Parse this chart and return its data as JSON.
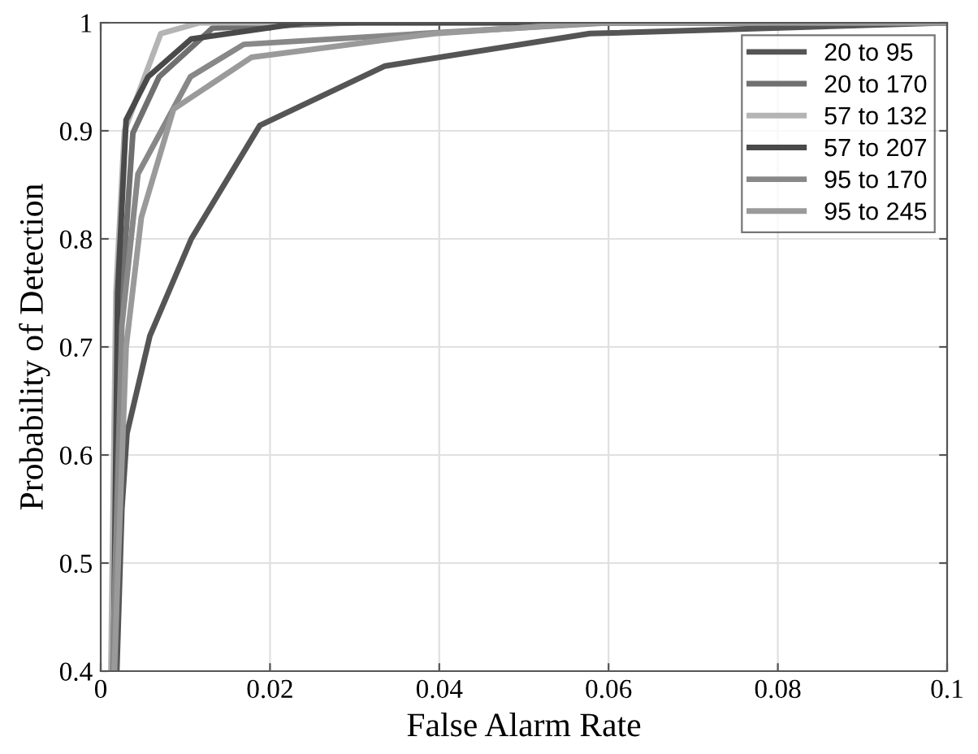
{
  "chart_data": {
    "type": "line",
    "xlabel": "False Alarm Rate",
    "ylabel": "Probability of Detection",
    "xlim": [
      0,
      0.1
    ],
    "ylim": [
      0.4,
      1
    ],
    "xticks": [
      0,
      0.02,
      0.04,
      0.06,
      0.08,
      0.1
    ],
    "yticks": [
      0.4,
      0.5,
      0.6,
      0.7,
      0.8,
      0.9,
      1
    ],
    "grid": true,
    "legend": "top right",
    "marker": "none",
    "line_style": "solid",
    "series": [
      {
        "name": "20 to 95",
        "color": "#555555",
        "x": [
          0.0019,
          0.0025,
          0.0031,
          0.0058,
          0.0107,
          0.0188,
          0.0336,
          0.0578,
          0.1
        ],
        "values": [
          0.4,
          0.55,
          0.62,
          0.71,
          0.8,
          0.905,
          0.96,
          0.99,
          1
        ]
      },
      {
        "name": "20 to 170",
        "color": "#707070",
        "x": [
          0.0017,
          0.0025,
          0.0038,
          0.0069,
          0.0132,
          0.03
        ],
        "values": [
          0.4,
          0.75,
          0.898,
          0.95,
          0.995,
          1
        ]
      },
      {
        "name": "57 to 132",
        "color": "#b4b4b4",
        "x": [
          0.0012,
          0.0018,
          0.0028,
          0.0071,
          0.0117,
          0.1
        ],
        "values": [
          0.4,
          0.75,
          0.9,
          0.99,
          1,
          1
        ]
      },
      {
        "name": "57 to 207",
        "color": "#4a4a4a",
        "x": [
          0.0015,
          0.002,
          0.003,
          0.0056,
          0.0107,
          0.024,
          0.1
        ],
        "values": [
          0.4,
          0.75,
          0.91,
          0.95,
          0.985,
          1,
          1
        ]
      },
      {
        "name": "95 to 170",
        "color": "#888888",
        "x": [
          0.0014,
          0.0025,
          0.0044,
          0.0106,
          0.0169,
          0.038,
          0.06,
          0.1
        ],
        "values": [
          0.4,
          0.72,
          0.86,
          0.95,
          0.98,
          0.99,
          1,
          1
        ]
      },
      {
        "name": "95 to 245",
        "color": "#9a9a9a",
        "x": [
          0.0016,
          0.003,
          0.0048,
          0.0086,
          0.0178,
          0.0395,
          0.0585,
          0.1
        ],
        "values": [
          0.4,
          0.7,
          0.82,
          0.92,
          0.968,
          0.99,
          1,
          1
        ]
      }
    ]
  }
}
